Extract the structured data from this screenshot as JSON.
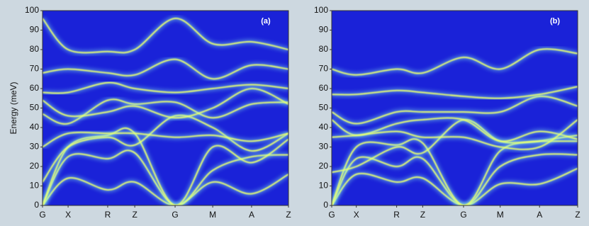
{
  "chart_data": [
    {
      "type": "line",
      "annotation": "(a)",
      "ylabel": "Energy (meV)",
      "xlim": [
        0,
        1
      ],
      "ylim": [
        0,
        100
      ],
      "xticks": [
        {
          "value": 0,
          "label": "G"
        },
        {
          "value": 0.104,
          "label": "X"
        },
        {
          "value": 0.265,
          "label": "R"
        },
        {
          "value": 0.375,
          "label": "Z"
        },
        {
          "value": 0.539,
          "label": "G"
        },
        {
          "value": 0.692,
          "label": "M"
        },
        {
          "value": 0.85,
          "label": "A"
        },
        {
          "value": 1,
          "label": "Z"
        }
      ],
      "yticks": [
        0,
        10,
        20,
        30,
        40,
        50,
        60,
        70,
        80,
        90,
        100
      ],
      "plot_background": "#1a22d8",
      "color": "#8ff7e8",
      "x": [
        0,
        0.104,
        0.265,
        0.375,
        0.539,
        0.692,
        0.85,
        1
      ],
      "series": [
        {
          "values": [
            0,
            14,
            8,
            12,
            0,
            12,
            6,
            16
          ]
        },
        {
          "values": [
            0,
            25,
            24,
            27,
            0,
            18,
            25,
            26
          ]
        },
        {
          "values": [
            0,
            30,
            36,
            37,
            0,
            30,
            22,
            34
          ]
        },
        {
          "values": [
            12,
            30,
            35,
            31,
            46,
            40,
            28,
            37
          ]
        },
        {
          "values": [
            30,
            37,
            37,
            37,
            35,
            36,
            33,
            37
          ]
        },
        {
          "values": [
            47,
            42,
            54,
            52,
            53,
            45,
            52,
            53
          ]
        },
        {
          "values": [
            54,
            46,
            48,
            51,
            45,
            50,
            60,
            52
          ]
        },
        {
          "values": [
            58,
            58,
            63,
            60,
            58,
            60,
            62,
            60
          ]
        },
        {
          "values": [
            68,
            70,
            68,
            67,
            75,
            65,
            72,
            70
          ]
        },
        {
          "values": [
            96,
            80,
            79,
            80,
            96,
            83,
            84,
            80
          ]
        }
      ]
    },
    {
      "type": "line",
      "annotation": "(b)",
      "xlim": [
        0,
        1
      ],
      "ylim": [
        0,
        100
      ],
      "xticks": [
        {
          "value": 0,
          "label": "G"
        },
        {
          "value": 0.1,
          "label": "X"
        },
        {
          "value": 0.264,
          "label": "R"
        },
        {
          "value": 0.37,
          "label": "Z"
        },
        {
          "value": 0.536,
          "label": "G"
        },
        {
          "value": 0.685,
          "label": "M"
        },
        {
          "value": 0.845,
          "label": "A"
        },
        {
          "value": 1,
          "label": "Z"
        }
      ],
      "yticks": [
        0,
        10,
        20,
        30,
        40,
        50,
        60,
        70,
        80,
        90,
        100
      ],
      "plot_background": "#1a22d8",
      "color": "#8ff7e8",
      "x": [
        0,
        0.1,
        0.264,
        0.37,
        0.536,
        0.685,
        0.845,
        1
      ],
      "series": [
        {
          "values": [
            0,
            16,
            12,
            14,
            0,
            11,
            11,
            19
          ]
        },
        {
          "values": [
            0,
            24,
            20,
            24,
            0,
            20,
            26,
            26
          ]
        },
        {
          "values": [
            0,
            30,
            31,
            32,
            0,
            28,
            33,
            36
          ]
        },
        {
          "values": [
            17,
            20,
            30,
            27,
            44,
            33,
            33,
            33
          ]
        },
        {
          "values": [
            44,
            36,
            42,
            44,
            44,
            33,
            38,
            34
          ]
        },
        {
          "values": [
            35,
            36,
            38,
            35,
            35,
            30,
            30,
            44
          ]
        },
        {
          "values": [
            48,
            42,
            48,
            48,
            48,
            48,
            56,
            51
          ]
        },
        {
          "values": [
            57,
            57,
            59,
            58,
            56,
            55,
            57,
            61
          ]
        },
        {
          "values": [
            70,
            67,
            70,
            68,
            76,
            70,
            80,
            78
          ]
        }
      ]
    }
  ]
}
